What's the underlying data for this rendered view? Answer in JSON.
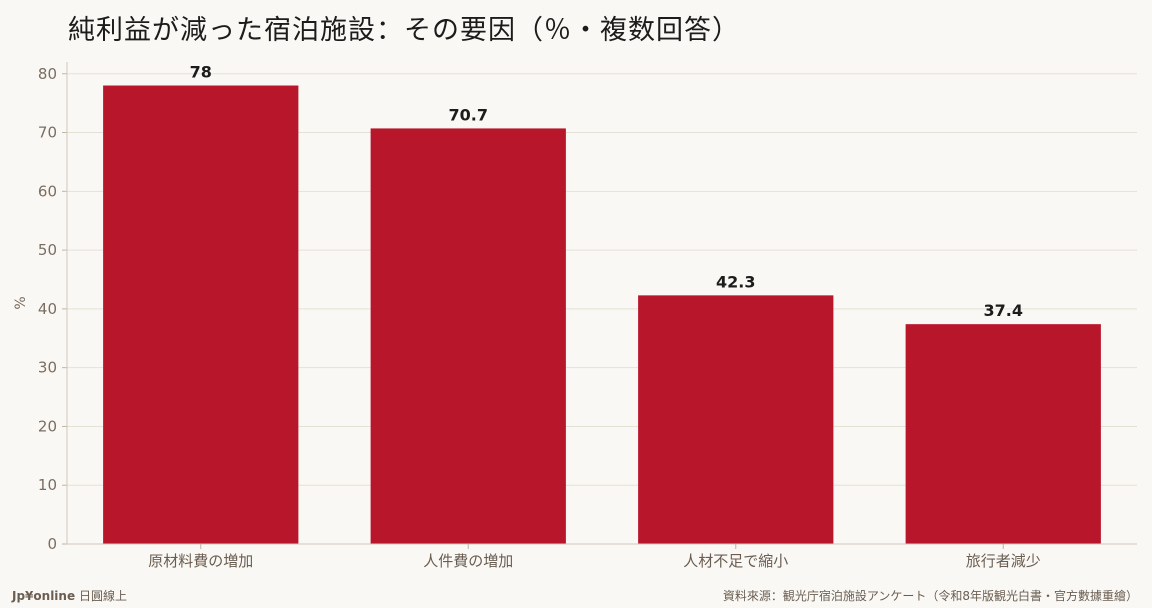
{
  "title": "純利益が減った宿泊施設：その要因（％・複数回答）",
  "footer": {
    "brand": "Jp¥online",
    "brand_sub": "日圓線上",
    "source": "資料來源：観光庁宿泊施設アンケート（令和8年版観光白書・官方數據重繪）"
  },
  "colors": {
    "bar": "#b8172b",
    "background": "#faf8f4",
    "grid": "#e6e1d8"
  },
  "chart_data": {
    "type": "bar",
    "title": "純利益が減った宿泊施設：その要因（％・複数回答）",
    "categories": [
      "原材料費の増加",
      "人件費の増加",
      "人材不足で縮小",
      "旅行者減少"
    ],
    "values": [
      78,
      70.7,
      42.3,
      37.4
    ],
    "value_labels": [
      "78",
      "70.7",
      "42.3",
      "37.4"
    ],
    "xlabel": "",
    "ylabel": "%",
    "ylim": [
      0,
      82
    ],
    "yticks": [
      0,
      10,
      20,
      30,
      40,
      50,
      60,
      70,
      80
    ],
    "grid": true,
    "legend": "none"
  }
}
